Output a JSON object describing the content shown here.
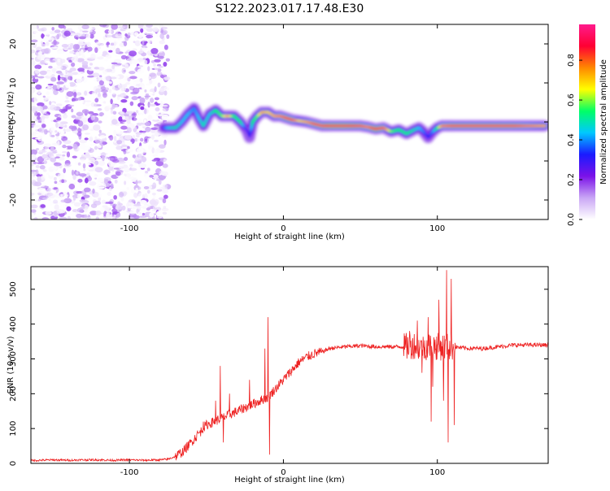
{
  "page_title": "S122.2023.017.17.48.E30",
  "chart_data": [
    {
      "type": "heatmap",
      "title": "",
      "xlabel": "Height of straight line (km)",
      "ylabel": "Frequency (Hz)",
      "xlim": [
        -164,
        172
      ],
      "ylim": [
        -25,
        25
      ],
      "xticks": [
        "-100",
        "0",
        "100"
      ],
      "yticks": [
        "-20",
        "-10",
        "0",
        "10",
        "20"
      ],
      "colorbar": {
        "label": "Normalized spectral amplitude",
        "range": [
          0,
          0.98
        ],
        "ticks": [
          "0.0",
          "0.2",
          "0.4",
          "0.6",
          "0.8"
        ],
        "colors": [
          "#ffffff",
          "#c9a6f5",
          "#7b12e8",
          "#1a1aff",
          "#00c8ff",
          "#00ff66",
          "#ffff00",
          "#ff8800",
          "#ff0033",
          "#ff1a8c"
        ]
      },
      "noise_region_x": [
        -164,
        -75
      ],
      "ridge": {
        "x": [
          -78,
          -75,
          -70,
          -66,
          -62,
          -58,
          -55,
          -52,
          -48,
          -44,
          -40,
          -36,
          -32,
          -28,
          -24,
          -22,
          -20,
          -17,
          -14,
          -10,
          -6,
          -2,
          2,
          6,
          10,
          15,
          20,
          25,
          30,
          40,
          50,
          55,
          60,
          65,
          70,
          75,
          80,
          85,
          88,
          91,
          94,
          97,
          100,
          103,
          110,
          120,
          130,
          140,
          150,
          160,
          170
        ],
        "y": [
          -1.5,
          -1.5,
          -1.5,
          0,
          2,
          3.5,
          1,
          -1,
          2,
          3,
          1.5,
          1.5,
          1.5,
          0,
          -2,
          -4,
          0,
          1.5,
          2.5,
          2.5,
          1.5,
          1.5,
          1,
          0.5,
          0.3,
          0,
          -0.5,
          -1,
          -1,
          -1,
          -1,
          -1.3,
          -1.8,
          -1.5,
          -2.5,
          -2,
          -3,
          -2,
          -1.5,
          -2.5,
          -4,
          -2.5,
          -1.5,
          -1,
          -1,
          -1,
          -1,
          -1,
          -1,
          -1,
          -1
        ],
        "amplitude": [
          0.35,
          0.45,
          0.5,
          0.45,
          0.45,
          0.4,
          0.45,
          0.5,
          0.45,
          0.55,
          0.6,
          0.75,
          0.55,
          0.55,
          0.3,
          0.25,
          0.55,
          0.6,
          0.75,
          0.7,
          0.75,
          0.8,
          0.85,
          0.85,
          0.7,
          0.75,
          0.85,
          0.85,
          0.9,
          0.9,
          0.85,
          0.8,
          0.9,
          0.85,
          0.6,
          0.55,
          0.55,
          0.5,
          0.45,
          0.4,
          0.3,
          0.4,
          0.55,
          0.8,
          0.85,
          0.85,
          0.85,
          0.85,
          0.85,
          0.8,
          0.75
        ]
      }
    },
    {
      "type": "line",
      "title": "",
      "xlabel": "Height of straight line (km)",
      "ylabel": "SNR (10 * v/v)",
      "xlim": [
        -164,
        172
      ],
      "ylim": [
        0,
        565
      ],
      "xticks": [
        "-100",
        "0",
        "100"
      ],
      "yticks": [
        "0",
        "100",
        "200",
        "300",
        "400",
        "500"
      ],
      "series": [
        {
          "color": "#ee2222",
          "x": [
            -164,
            -150,
            -140,
            -130,
            -120,
            -110,
            -100,
            -90,
            -80,
            -75,
            -70,
            -65,
            -60,
            -55,
            -50,
            -45,
            -40,
            -35,
            -30,
            -25,
            -20,
            -15,
            -10,
            -5,
            0,
            5,
            10,
            15,
            20,
            25,
            30,
            40,
            50,
            60,
            70,
            80,
            85,
            90,
            95,
            100,
            105,
            110,
            120,
            130,
            140,
            150,
            160,
            172
          ],
          "y": [
            8,
            10,
            9,
            10,
            10,
            9,
            10,
            9,
            10,
            12,
            20,
            35,
            60,
            85,
            110,
            120,
            130,
            140,
            150,
            160,
            170,
            180,
            190,
            215,
            240,
            265,
            290,
            305,
            315,
            320,
            330,
            335,
            338,
            335,
            335,
            335,
            340,
            330,
            340,
            335,
            335,
            335,
            330,
            330,
            335,
            340,
            340,
            340
          ]
        }
      ],
      "spikes": [
        {
          "x": -56,
          "y": 90
        },
        {
          "x": -52,
          "y": 120
        },
        {
          "x": -44,
          "y": 180
        },
        {
          "x": -41,
          "y": 280
        },
        {
          "x": -39,
          "y": 60
        },
        {
          "x": -35,
          "y": 200
        },
        {
          "x": -30,
          "y": 140
        },
        {
          "x": -22,
          "y": 240
        },
        {
          "x": -17,
          "y": 180
        },
        {
          "x": -12,
          "y": 330
        },
        {
          "x": -10,
          "y": 420
        },
        {
          "x": -9,
          "y": 25
        },
        {
          "x": 82,
          "y": 380
        },
        {
          "x": 87,
          "y": 410
        },
        {
          "x": 90,
          "y": 260
        },
        {
          "x": 94,
          "y": 420
        },
        {
          "x": 97,
          "y": 220
        },
        {
          "x": 96,
          "y": 120
        },
        {
          "x": 101,
          "y": 470
        },
        {
          "x": 104,
          "y": 180
        },
        {
          "x": 106,
          "y": 555
        },
        {
          "x": 107,
          "y": 60
        },
        {
          "x": 109,
          "y": 530
        },
        {
          "x": 111,
          "y": 110
        }
      ]
    }
  ]
}
